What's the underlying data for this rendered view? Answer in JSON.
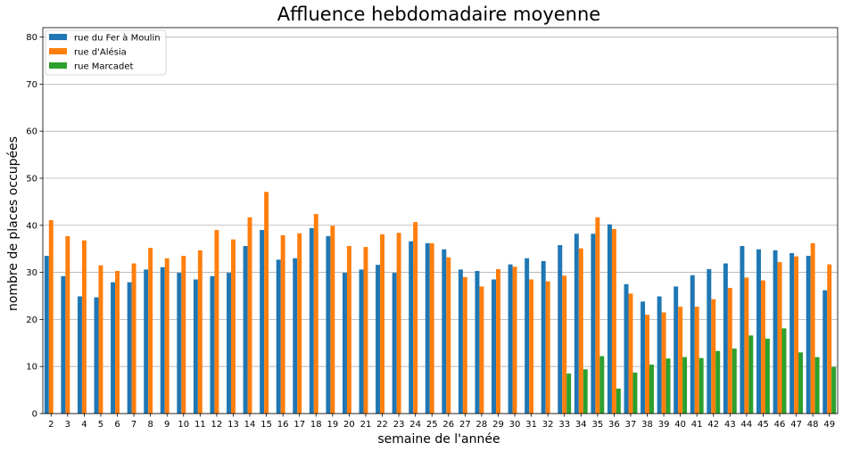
{
  "chart_data": {
    "type": "bar",
    "title": "Affluence hebdomadaire moyenne",
    "xlabel": "semaine de l'année",
    "ylabel": "nombre de places occupées",
    "ylim": [
      0,
      82
    ],
    "yticks": [
      0,
      10,
      20,
      30,
      40,
      50,
      60,
      70,
      80
    ],
    "grid": "horizontal",
    "legend_position": "top-left",
    "categories": [
      "2",
      "3",
      "4",
      "5",
      "6",
      "7",
      "8",
      "9",
      "10",
      "11",
      "12",
      "13",
      "14",
      "15",
      "16",
      "17",
      "18",
      "19",
      "20",
      "21",
      "22",
      "23",
      "24",
      "25",
      "26",
      "27",
      "28",
      "29",
      "30",
      "31",
      "32",
      "33",
      "34",
      "35",
      "36",
      "37",
      "38",
      "39",
      "40",
      "41",
      "42",
      "43",
      "44",
      "45",
      "46",
      "47",
      "48",
      "49"
    ],
    "series": [
      {
        "name": "rue du Fer à Moulin",
        "color": "#1f77b4",
        "values": [
          33.5,
          29.2,
          24.9,
          24.7,
          27.9,
          27.9,
          30.6,
          31.1,
          29.9,
          28.5,
          29.2,
          29.9,
          35.6,
          39.0,
          32.7,
          33.0,
          39.4,
          37.7,
          29.9,
          30.6,
          31.6,
          29.9,
          36.6,
          36.2,
          34.9,
          30.6,
          30.3,
          28.5,
          31.7,
          33.0,
          32.4,
          35.8,
          38.2,
          38.2,
          40.2,
          27.5,
          23.8,
          24.9,
          27.0,
          29.4,
          30.7,
          31.9,
          35.6,
          34.9,
          34.7,
          34.1,
          33.5,
          26.2
        ]
      },
      {
        "name": "rue d'Alésia",
        "color": "#ff7f0e",
        "values": [
          41.1,
          37.7,
          36.8,
          31.5,
          30.3,
          31.9,
          35.2,
          33.0,
          33.5,
          34.7,
          39.0,
          37.0,
          41.7,
          47.1,
          37.9,
          38.3,
          42.4,
          39.9,
          35.6,
          35.4,
          38.1,
          38.4,
          40.7,
          36.2,
          33.2,
          29.0,
          27.0,
          30.7,
          31.2,
          28.5,
          28.1,
          29.3,
          35.1,
          41.7,
          39.2,
          25.5,
          21.0,
          21.5,
          22.7,
          22.7,
          24.3,
          26.7,
          28.9,
          28.3,
          32.2,
          33.4,
          36.2,
          31.7
        ]
      },
      {
        "name": "rue Marcadet",
        "color": "#2ca02c",
        "values": [
          null,
          null,
          null,
          null,
          null,
          null,
          null,
          null,
          null,
          null,
          null,
          null,
          null,
          null,
          null,
          null,
          null,
          null,
          null,
          null,
          null,
          null,
          null,
          null,
          null,
          null,
          null,
          null,
          null,
          null,
          null,
          8.5,
          9.4,
          12.2,
          5.3,
          8.7,
          10.4,
          11.7,
          12.0,
          11.8,
          13.3,
          13.8,
          16.6,
          15.9,
          18.1,
          13.0,
          12.0,
          9.9
        ]
      }
    ]
  }
}
